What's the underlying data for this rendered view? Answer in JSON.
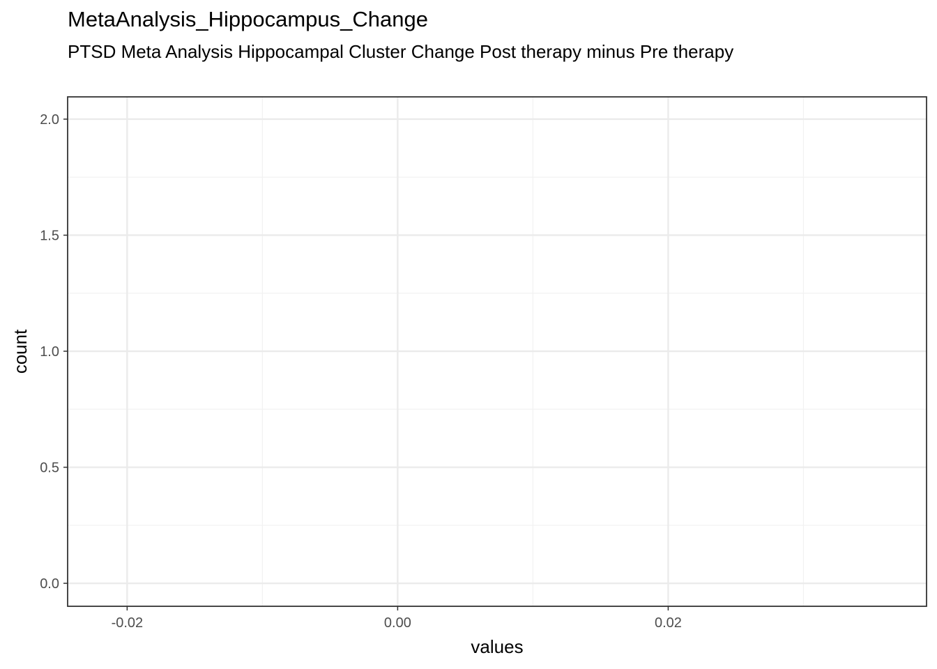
{
  "chart_data": {
    "type": "histogram",
    "title": "MetaAnalysis_Hippocampus_Change",
    "subtitle": "PTSD Meta Analysis Hippocampal Cluster Change Post therapy minus Pre therapy",
    "x_label": "values",
    "y_label": "count",
    "xlim": [
      -0.0244,
      0.0391
    ],
    "ylim": [
      -0.099,
      2.096
    ],
    "xticks": [
      {
        "value": -0.02,
        "label": "-0.02"
      },
      {
        "value": 0,
        "label": "0.00"
      },
      {
        "value": 0.02,
        "label": "0.02"
      }
    ],
    "yticks": [
      {
        "value": 0,
        "label": "0.0"
      },
      {
        "value": 0.5,
        "label": "0.5"
      },
      {
        "value": 1,
        "label": "1.0"
      },
      {
        "value": 1.5,
        "label": "1.5"
      },
      {
        "value": 2,
        "label": "2.0"
      }
    ],
    "grid": true
  }
}
